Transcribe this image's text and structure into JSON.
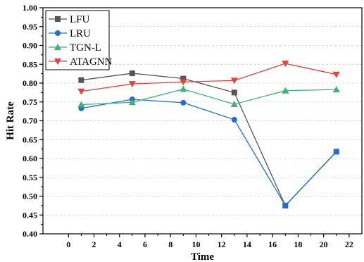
{
  "chart_data": {
    "type": "line",
    "xlabel": "Time",
    "ylabel": "Hit Rate",
    "xlim": [
      -2,
      23
    ],
    "ylim": [
      0.4,
      1.0
    ],
    "x_ticks": [
      0,
      2,
      4,
      6,
      8,
      10,
      12,
      14,
      16,
      18,
      20,
      22
    ],
    "y_ticks": [
      0.4,
      0.45,
      0.5,
      0.55,
      0.6,
      0.65,
      0.7,
      0.75,
      0.8,
      0.85,
      0.9,
      0.95,
      1.0
    ],
    "grid": "horizontal dashed",
    "legend_position": "top-left",
    "x": [
      1,
      5,
      9,
      13,
      17,
      21
    ],
    "series": [
      {
        "name": "LFU",
        "color": "#555555",
        "marker": "square",
        "values": [
          0.808,
          0.826,
          0.812,
          0.775,
          0.475,
          0.618
        ]
      },
      {
        "name": "LRU",
        "color": "#1f6fd6",
        "marker": "circle",
        "values": [
          0.733,
          0.757,
          0.748,
          0.703,
          0.475,
          0.618
        ]
      },
      {
        "name": "TGN-L",
        "color": "#3cb371",
        "marker": "triangle-up",
        "values": [
          0.743,
          0.749,
          0.784,
          0.744,
          0.78,
          0.783
        ]
      },
      {
        "name": "ATAGNN",
        "color": "#e8413c",
        "marker": "triangle-down",
        "values": [
          0.778,
          0.798,
          0.803,
          0.807,
          0.852,
          0.823
        ]
      }
    ]
  }
}
